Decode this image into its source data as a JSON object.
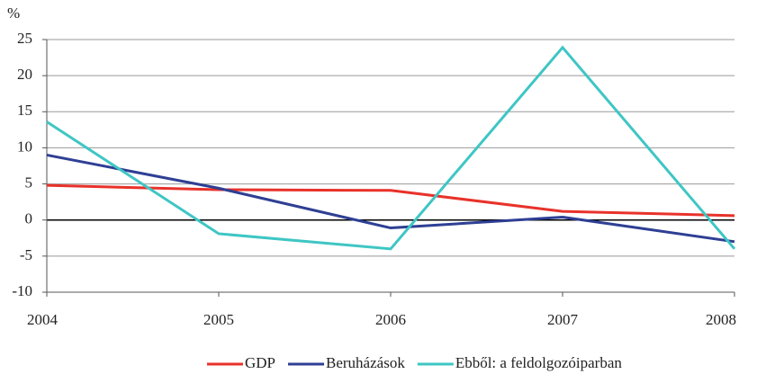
{
  "chart_data": {
    "type": "line",
    "y_label": "%",
    "categories": [
      "2004",
      "2005",
      "2006",
      "2007",
      "2008"
    ],
    "series": [
      {
        "name": "GDP",
        "color": "#e8322a",
        "values": [
          4.8,
          4.2,
          4.1,
          1.2,
          0.6
        ]
      },
      {
        "name": "Beruházások",
        "color": "#2e3f94",
        "values": [
          9.0,
          4.4,
          -1.1,
          0.4,
          -3.0
        ]
      },
      {
        "name": "Ebből: a feldolgozóiparban",
        "color": "#3ec6c4",
        "values": [
          13.6,
          -1.9,
          -4.0,
          23.9,
          -4.0
        ]
      }
    ],
    "ylim": [
      -10,
      25
    ],
    "yticks": [
      -10,
      -5,
      0,
      5,
      10,
      15,
      20,
      25
    ],
    "grid": true,
    "legend": "bottom"
  }
}
